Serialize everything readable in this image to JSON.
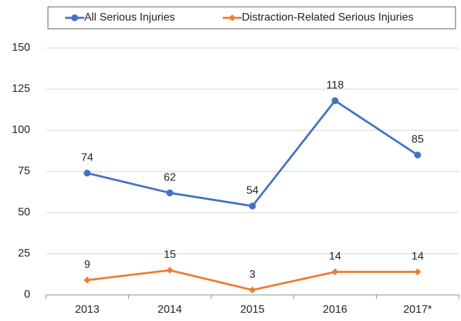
{
  "chart_data": {
    "type": "line",
    "categories": [
      "2013",
      "2014",
      "2015",
      "2016",
      "2017*"
    ],
    "series": [
      {
        "name": "All Serious Injuries",
        "color": "#4472c4",
        "values": [
          74,
          62,
          54,
          118,
          85
        ]
      },
      {
        "name": "Distraction-Related Serious Injuries",
        "color": "#ed7d31",
        "values": [
          9,
          15,
          3,
          14,
          14
        ]
      }
    ],
    "ylim": [
      0,
      150
    ],
    "yticks": [
      0,
      25,
      50,
      75,
      100,
      125,
      150
    ],
    "grid": true,
    "legend": "top"
  }
}
